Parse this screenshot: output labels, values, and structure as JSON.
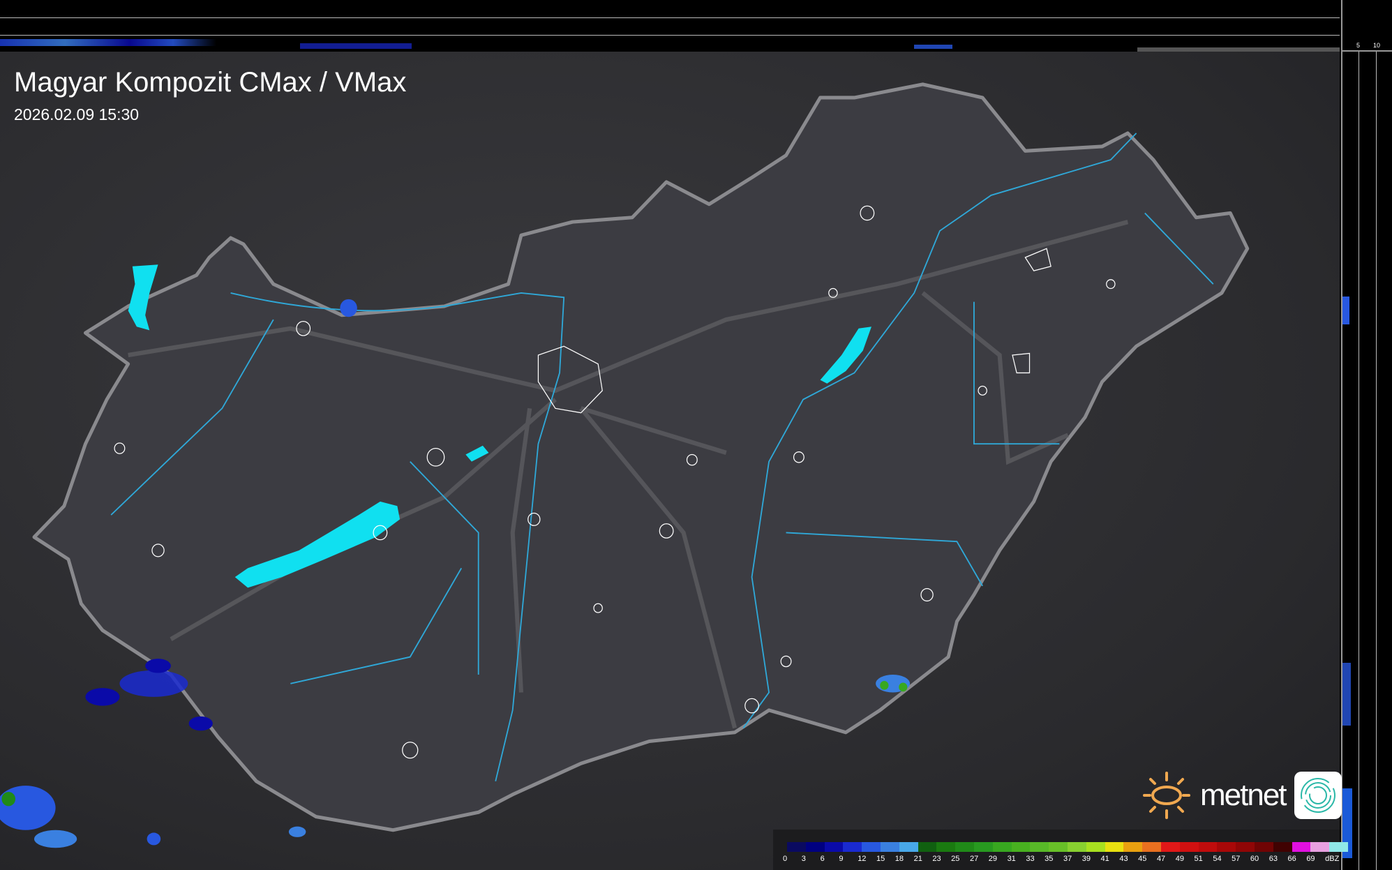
{
  "title": "Magyar Kompozit CMax / VMax",
  "datetime": "2026.02.09 15:30",
  "logo": {
    "brand": "metnet",
    "sun_color": "#f0a850",
    "app_icon_color": "#2bb8a8"
  },
  "side_axis": {
    "top_ticks": [
      "10",
      "5"
    ],
    "right_ticks": [
      "5",
      "10"
    ]
  },
  "legend": {
    "unit": "dBZ",
    "labels": [
      "0",
      "3",
      "6",
      "9",
      "12",
      "15",
      "18",
      "21",
      "23",
      "25",
      "27",
      "29",
      "31",
      "33",
      "35",
      "37",
      "39",
      "41",
      "43",
      "45",
      "47",
      "49",
      "51",
      "54",
      "57",
      "60",
      "63",
      "66",
      "69"
    ],
    "colors": [
      "#0a0a60",
      "#000080",
      "#0a0aa8",
      "#1a2ad0",
      "#2858e0",
      "#3a80e0",
      "#48a8e8",
      "#106010",
      "#1a7a10",
      "#208a18",
      "#289a20",
      "#38a820",
      "#48b020",
      "#58b828",
      "#68c028",
      "#88d030",
      "#a8e020",
      "#e8e010",
      "#e8a010",
      "#e87020",
      "#e01818",
      "#d01010",
      "#c00c0c",
      "#a80808",
      "#900606",
      "#700404",
      "#400202",
      "#e010e0",
      "#e8a0e0",
      "#90e8e8"
    ]
  },
  "colors": {
    "country_fill": "#3c3c42",
    "border": "#8a8a8e",
    "rivers": "#2fa8d8",
    "lakes": "#10e0f0",
    "settlements": "#ffffff"
  }
}
